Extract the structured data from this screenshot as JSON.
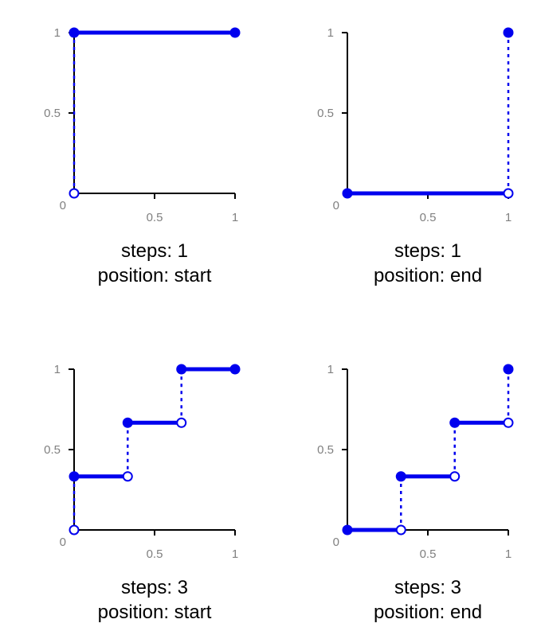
{
  "chart_data": [
    {
      "type": "line",
      "steps": 1,
      "position": "start",
      "caption_lines": [
        "steps: 1",
        "position: start"
      ],
      "xlim": [
        0,
        1
      ],
      "ylim": [
        0,
        1
      ],
      "x_ticks": [
        "0.5",
        "1"
      ],
      "y_ticks": [
        "0",
        "0.5",
        "1"
      ],
      "segments": [
        {
          "x": [
            0,
            1
          ],
          "y": [
            1,
            1
          ],
          "start_marker": "filled",
          "end_marker": "filled"
        }
      ],
      "jumps": [
        {
          "x": 0,
          "y_from": 0,
          "y_to": 1,
          "from_marker": "open"
        }
      ],
      "colors": {
        "series": "#0000ee",
        "axis": "#000000",
        "tick_label": "#808080"
      }
    },
    {
      "type": "line",
      "steps": 1,
      "position": "end",
      "caption_lines": [
        "steps: 1",
        "position: end"
      ],
      "xlim": [
        0,
        1
      ],
      "ylim": [
        0,
        1
      ],
      "x_ticks": [
        "0.5",
        "1"
      ],
      "y_ticks": [
        "0",
        "0.5",
        "1"
      ],
      "segments": [
        {
          "x": [
            0,
            1
          ],
          "y": [
            0,
            0
          ],
          "start_marker": "filled",
          "end_marker": "open"
        }
      ],
      "jumps": [
        {
          "x": 1,
          "y_from": 0,
          "y_to": 1,
          "to_marker": "filled"
        }
      ],
      "colors": {
        "series": "#0000ee",
        "axis": "#000000",
        "tick_label": "#808080"
      }
    },
    {
      "type": "line",
      "steps": 3,
      "position": "start",
      "caption_lines": [
        "steps: 3",
        "position: start"
      ],
      "xlim": [
        0,
        1
      ],
      "ylim": [
        0,
        1
      ],
      "x_ticks": [
        "0.5",
        "1"
      ],
      "y_ticks": [
        "0",
        "0.5",
        "1"
      ],
      "segments": [
        {
          "x": [
            0,
            0.333
          ],
          "y": [
            0.333,
            0.333
          ],
          "start_marker": "filled",
          "end_marker": "open"
        },
        {
          "x": [
            0.333,
            0.667
          ],
          "y": [
            0.667,
            0.667
          ],
          "start_marker": "filled",
          "end_marker": "open"
        },
        {
          "x": [
            0.667,
            1
          ],
          "y": [
            1,
            1
          ],
          "start_marker": "filled",
          "end_marker": "filled"
        }
      ],
      "jumps": [
        {
          "x": 0,
          "y_from": 0,
          "y_to": 0.333,
          "from_marker": "open"
        },
        {
          "x": 0.333,
          "y_from": 0.333,
          "y_to": 0.667
        },
        {
          "x": 0.667,
          "y_from": 0.667,
          "y_to": 1
        }
      ],
      "colors": {
        "series": "#0000ee",
        "axis": "#000000",
        "tick_label": "#808080"
      }
    },
    {
      "type": "line",
      "steps": 3,
      "position": "end",
      "caption_lines": [
        "steps: 3",
        "position: end"
      ],
      "xlim": [
        0,
        1
      ],
      "ylim": [
        0,
        1
      ],
      "x_ticks": [
        "0.5",
        "1"
      ],
      "y_ticks": [
        "0",
        "0.5",
        "1"
      ],
      "segments": [
        {
          "x": [
            0,
            0.333
          ],
          "y": [
            0,
            0
          ],
          "start_marker": "filled",
          "end_marker": "open"
        },
        {
          "x": [
            0.333,
            0.667
          ],
          "y": [
            0.333,
            0.333
          ],
          "start_marker": "filled",
          "end_marker": "open"
        },
        {
          "x": [
            0.667,
            1
          ],
          "y": [
            0.667,
            0.667
          ],
          "start_marker": "filled",
          "end_marker": "open"
        }
      ],
      "jumps": [
        {
          "x": 0.333,
          "y_from": 0,
          "y_to": 0.333
        },
        {
          "x": 0.667,
          "y_from": 0.333,
          "y_to": 0.667
        },
        {
          "x": 1,
          "y_from": 0.667,
          "y_to": 1,
          "to_marker": "filled"
        }
      ],
      "colors": {
        "series": "#0000ee",
        "axis": "#000000",
        "tick_label": "#808080"
      }
    }
  ]
}
